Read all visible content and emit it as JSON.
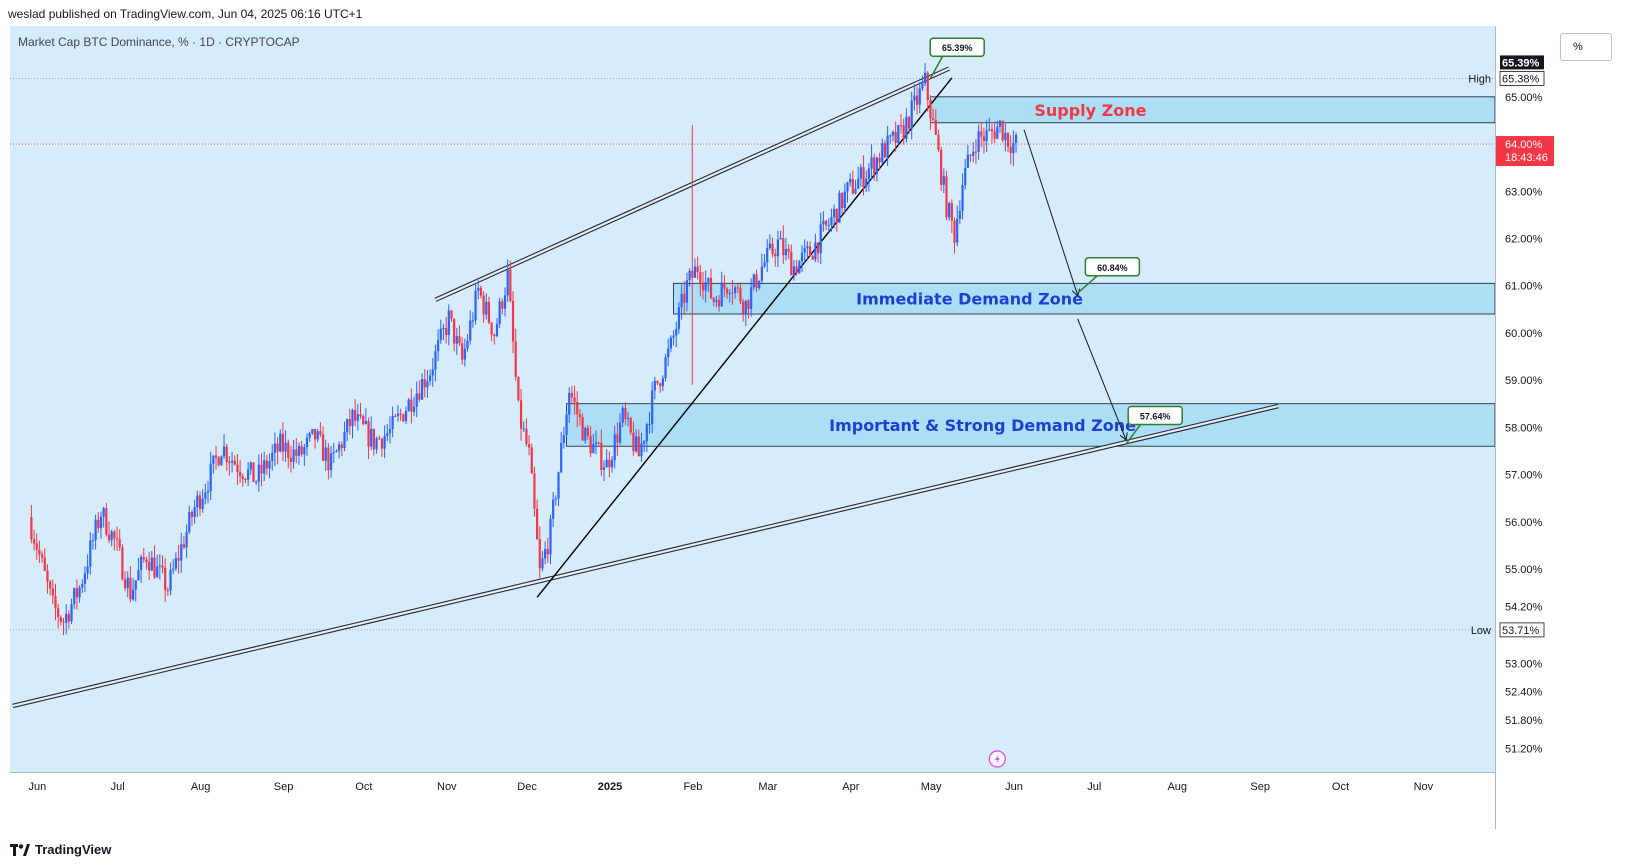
{
  "header": {
    "publish_text": "weslad published on TradingView.com, Jun 04, 2025 06:16 UTC+1"
  },
  "symbol_label": "Market Cap BTC Dominance, % · 1D · CRYPTOCAP",
  "scale_button": "%",
  "footer": {
    "brand": "TradingView"
  },
  "colors": {
    "background": "#d6ecfb",
    "bull": "#2962ff",
    "bear": "#f23645",
    "zone_fill": "#a5ddf5",
    "current_price": "#f23645"
  },
  "chart_data": {
    "type": "candlestick",
    "title": "",
    "xlabel": "",
    "ylabel": "",
    "x_ticks": [
      "Jun",
      "Jul",
      "Aug",
      "Sep",
      "Oct",
      "Nov",
      "Dec",
      "2025",
      "Feb",
      "Mar",
      "Apr",
      "May",
      "Jun",
      "Jul",
      "Aug",
      "Sep",
      "Oct",
      "Nov"
    ],
    "y_ticks": [
      "51.20%",
      "51.80%",
      "52.40%",
      "53.00%",
      "54.20%",
      "55.00%",
      "56.00%",
      "57.00%",
      "58.00%",
      "59.00%",
      "60.00%",
      "61.00%",
      "62.00%",
      "63.00%",
      "65.00%"
    ],
    "ylim": [
      50.7,
      66.5
    ],
    "price_anchors": [
      {
        "date": "2024-06-01",
        "value": 56.1
      },
      {
        "date": "2024-06-04",
        "value": 55.5
      },
      {
        "date": "2024-06-10",
        "value": 54.2
      },
      {
        "date": "2024-06-14",
        "value": 53.9
      },
      {
        "date": "2024-06-20",
        "value": 54.6
      },
      {
        "date": "2024-06-28",
        "value": 56.2
      },
      {
        "date": "2024-07-03",
        "value": 55.6
      },
      {
        "date": "2024-07-09",
        "value": 54.5
      },
      {
        "date": "2024-07-15",
        "value": 55.3
      },
      {
        "date": "2024-07-23",
        "value": 54.6
      },
      {
        "date": "2024-08-02",
        "value": 56.3
      },
      {
        "date": "2024-08-08",
        "value": 57.0
      },
      {
        "date": "2024-08-12",
        "value": 57.6
      },
      {
        "date": "2024-08-18",
        "value": 57.2
      },
      {
        "date": "2024-08-25",
        "value": 56.9
      },
      {
        "date": "2024-09-03",
        "value": 57.6
      },
      {
        "date": "2024-09-10",
        "value": 57.4
      },
      {
        "date": "2024-09-16",
        "value": 57.8
      },
      {
        "date": "2024-09-22",
        "value": 57.2
      },
      {
        "date": "2024-09-30",
        "value": 58.2
      },
      {
        "date": "2024-10-08",
        "value": 57.7
      },
      {
        "date": "2024-10-14",
        "value": 57.9
      },
      {
        "date": "2024-10-22",
        "value": 58.6
      },
      {
        "date": "2024-10-29",
        "value": 59.2
      },
      {
        "date": "2024-11-05",
        "value": 60.3
      },
      {
        "date": "2024-11-10",
        "value": 59.4
      },
      {
        "date": "2024-11-16",
        "value": 60.9
      },
      {
        "date": "2024-11-22",
        "value": 60.0
      },
      {
        "date": "2024-11-27",
        "value": 61.2
      },
      {
        "date": "2024-12-01",
        "value": 58.3
      },
      {
        "date": "2024-12-05",
        "value": 57.4
      },
      {
        "date": "2024-12-09",
        "value": 54.9
      },
      {
        "date": "2024-12-13",
        "value": 55.8
      },
      {
        "date": "2024-12-20",
        "value": 58.8
      },
      {
        "date": "2024-12-26",
        "value": 57.8
      },
      {
        "date": "2025-01-03",
        "value": 57.2
      },
      {
        "date": "2025-01-09",
        "value": 58.2
      },
      {
        "date": "2025-01-15",
        "value": 57.4
      },
      {
        "date": "2025-01-21",
        "value": 58.8
      },
      {
        "date": "2025-01-27",
        "value": 59.7
      },
      {
        "date": "2025-02-02",
        "value": 61.0
      },
      {
        "date": "2025-02-06",
        "value": 61.4
      },
      {
        "date": "2025-02-12",
        "value": 60.7
      },
      {
        "date": "2025-02-18",
        "value": 61.1
      },
      {
        "date": "2025-02-24",
        "value": 60.6
      },
      {
        "date": "2025-03-02",
        "value": 61.4
      },
      {
        "date": "2025-03-08",
        "value": 61.9
      },
      {
        "date": "2025-03-14",
        "value": 61.4
      },
      {
        "date": "2025-03-20",
        "value": 61.7
      },
      {
        "date": "2025-03-27",
        "value": 62.3
      },
      {
        "date": "2025-04-03",
        "value": 63.0
      },
      {
        "date": "2025-04-10",
        "value": 63.4
      },
      {
        "date": "2025-04-17",
        "value": 63.9
      },
      {
        "date": "2025-04-23",
        "value": 64.2
      },
      {
        "date": "2025-04-28",
        "value": 64.8
      },
      {
        "date": "2025-05-02",
        "value": 65.3
      },
      {
        "date": "2025-05-06",
        "value": 64.1
      },
      {
        "date": "2025-05-10",
        "value": 62.7
      },
      {
        "date": "2025-05-13",
        "value": 62.1
      },
      {
        "date": "2025-05-16",
        "value": 63.2
      },
      {
        "date": "2025-05-21",
        "value": 64.1
      },
      {
        "date": "2025-05-26",
        "value": 64.2
      },
      {
        "date": "2025-05-30",
        "value": 64.4
      },
      {
        "date": "2025-06-02",
        "value": 64.1
      },
      {
        "date": "2025-06-04",
        "value": 64.0
      }
    ],
    "wick_spikes": [
      {
        "date": "2025-02-03",
        "high": 64.4,
        "low": 58.9
      }
    ],
    "zones": [
      {
        "label": "Supply Zone",
        "from": "2025-05-03",
        "to": "2025-11-30",
        "top": 65.0,
        "bottom": 64.45,
        "label_color": "#f23645"
      },
      {
        "label": "Immediate Demand Zone",
        "from": "2025-01-27",
        "to": "2025-11-30",
        "top": 61.05,
        "bottom": 60.4,
        "label_color": "#1e3fd0"
      },
      {
        "label": "Important & Strong Demand Zone",
        "from": "2024-12-18",
        "to": "2025-11-30",
        "top": 58.5,
        "bottom": 57.6,
        "label_color": "#1e3fd0"
      }
    ],
    "trendlines": [
      {
        "kind": "double",
        "from": {
          "date": "2024-10-30",
          "value": 60.7
        },
        "to": {
          "date": "2025-05-10",
          "value": 65.6
        }
      },
      {
        "kind": "double",
        "from": {
          "date": "2024-05-25",
          "value": 52.1
        },
        "to": {
          "date": "2025-09-10",
          "value": 58.45
        }
      },
      {
        "kind": "single",
        "from": {
          "date": "2024-12-07",
          "value": 54.4
        },
        "to": {
          "date": "2025-05-11",
          "value": 65.4
        }
      }
    ],
    "arrows": [
      {
        "from": {
          "date": "2025-06-07",
          "value": 64.3
        },
        "to": {
          "date": "2025-06-27",
          "value": 60.8
        }
      },
      {
        "from": {
          "date": "2025-06-27",
          "value": 60.3
        },
        "to": {
          "date": "2025-07-15",
          "value": 57.75
        }
      }
    ],
    "callouts": [
      {
        "text": "65.39%",
        "date": "2025-05-03",
        "value": 65.39,
        "box_date": "2025-05-13",
        "box_value": 66.05
      },
      {
        "text": "60.84%",
        "date": "2025-06-27",
        "value": 60.84,
        "box_date": "2025-07-10",
        "box_value": 61.4
      },
      {
        "text": "57.64%",
        "date": "2025-07-15",
        "value": 57.64,
        "box_date": "2025-07-26",
        "box_value": 58.25
      }
    ],
    "high_line": {
      "label": "High",
      "value": 65.39,
      "price_label": "65.39%",
      "secondary_label": "65.38%"
    },
    "low_line": {
      "label": "Low",
      "value": 53.71,
      "price_label": "53.71%"
    },
    "current": {
      "value": 64.0,
      "price_label": "64.00%",
      "countdown": "18:43:46"
    }
  }
}
